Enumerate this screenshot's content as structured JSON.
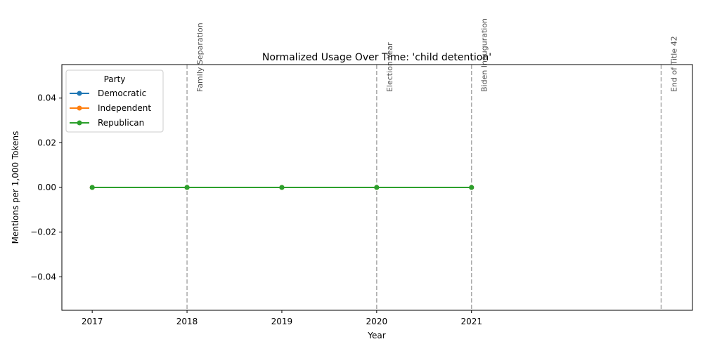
{
  "chart_data": {
    "type": "line",
    "title": "Normalized Usage Over Time: 'child detention'",
    "xlabel": "Year",
    "ylabel": "Mentions per 1,000 Tokens",
    "x": [
      2017,
      2018,
      2019,
      2020,
      2021
    ],
    "x_tick_labels": [
      "2017",
      "2018",
      "2019",
      "2020",
      "2021"
    ],
    "xlim": [
      2016.68,
      2023.33
    ],
    "ylim": [
      -0.055,
      0.055
    ],
    "y_ticks": [
      -0.04,
      -0.02,
      0.0,
      0.02,
      0.04
    ],
    "y_tick_labels": [
      "−0.04",
      "−0.02",
      "0.00",
      "0.02",
      "0.04"
    ],
    "grid": false,
    "legend": {
      "title": "Party",
      "placement": "top-left"
    },
    "series": [
      {
        "name": "Democratic",
        "color": "#1f77b4",
        "values": [
          0,
          0,
          0,
          0,
          0
        ]
      },
      {
        "name": "Independent",
        "color": "#ff7f0e",
        "values": [
          0,
          0,
          0,
          0,
          0
        ]
      },
      {
        "name": "Republican",
        "color": "#2ca02c",
        "values": [
          0,
          0,
          0,
          0,
          0
        ]
      }
    ],
    "events": [
      {
        "x": 2018,
        "label": "Family Separation"
      },
      {
        "x": 2020,
        "label": "Election Year"
      },
      {
        "x": 2021,
        "label": "Biden Inauguration"
      },
      {
        "x": 2023,
        "label": "End of Title 42"
      }
    ],
    "event_line_color": "#aaaaaa"
  }
}
